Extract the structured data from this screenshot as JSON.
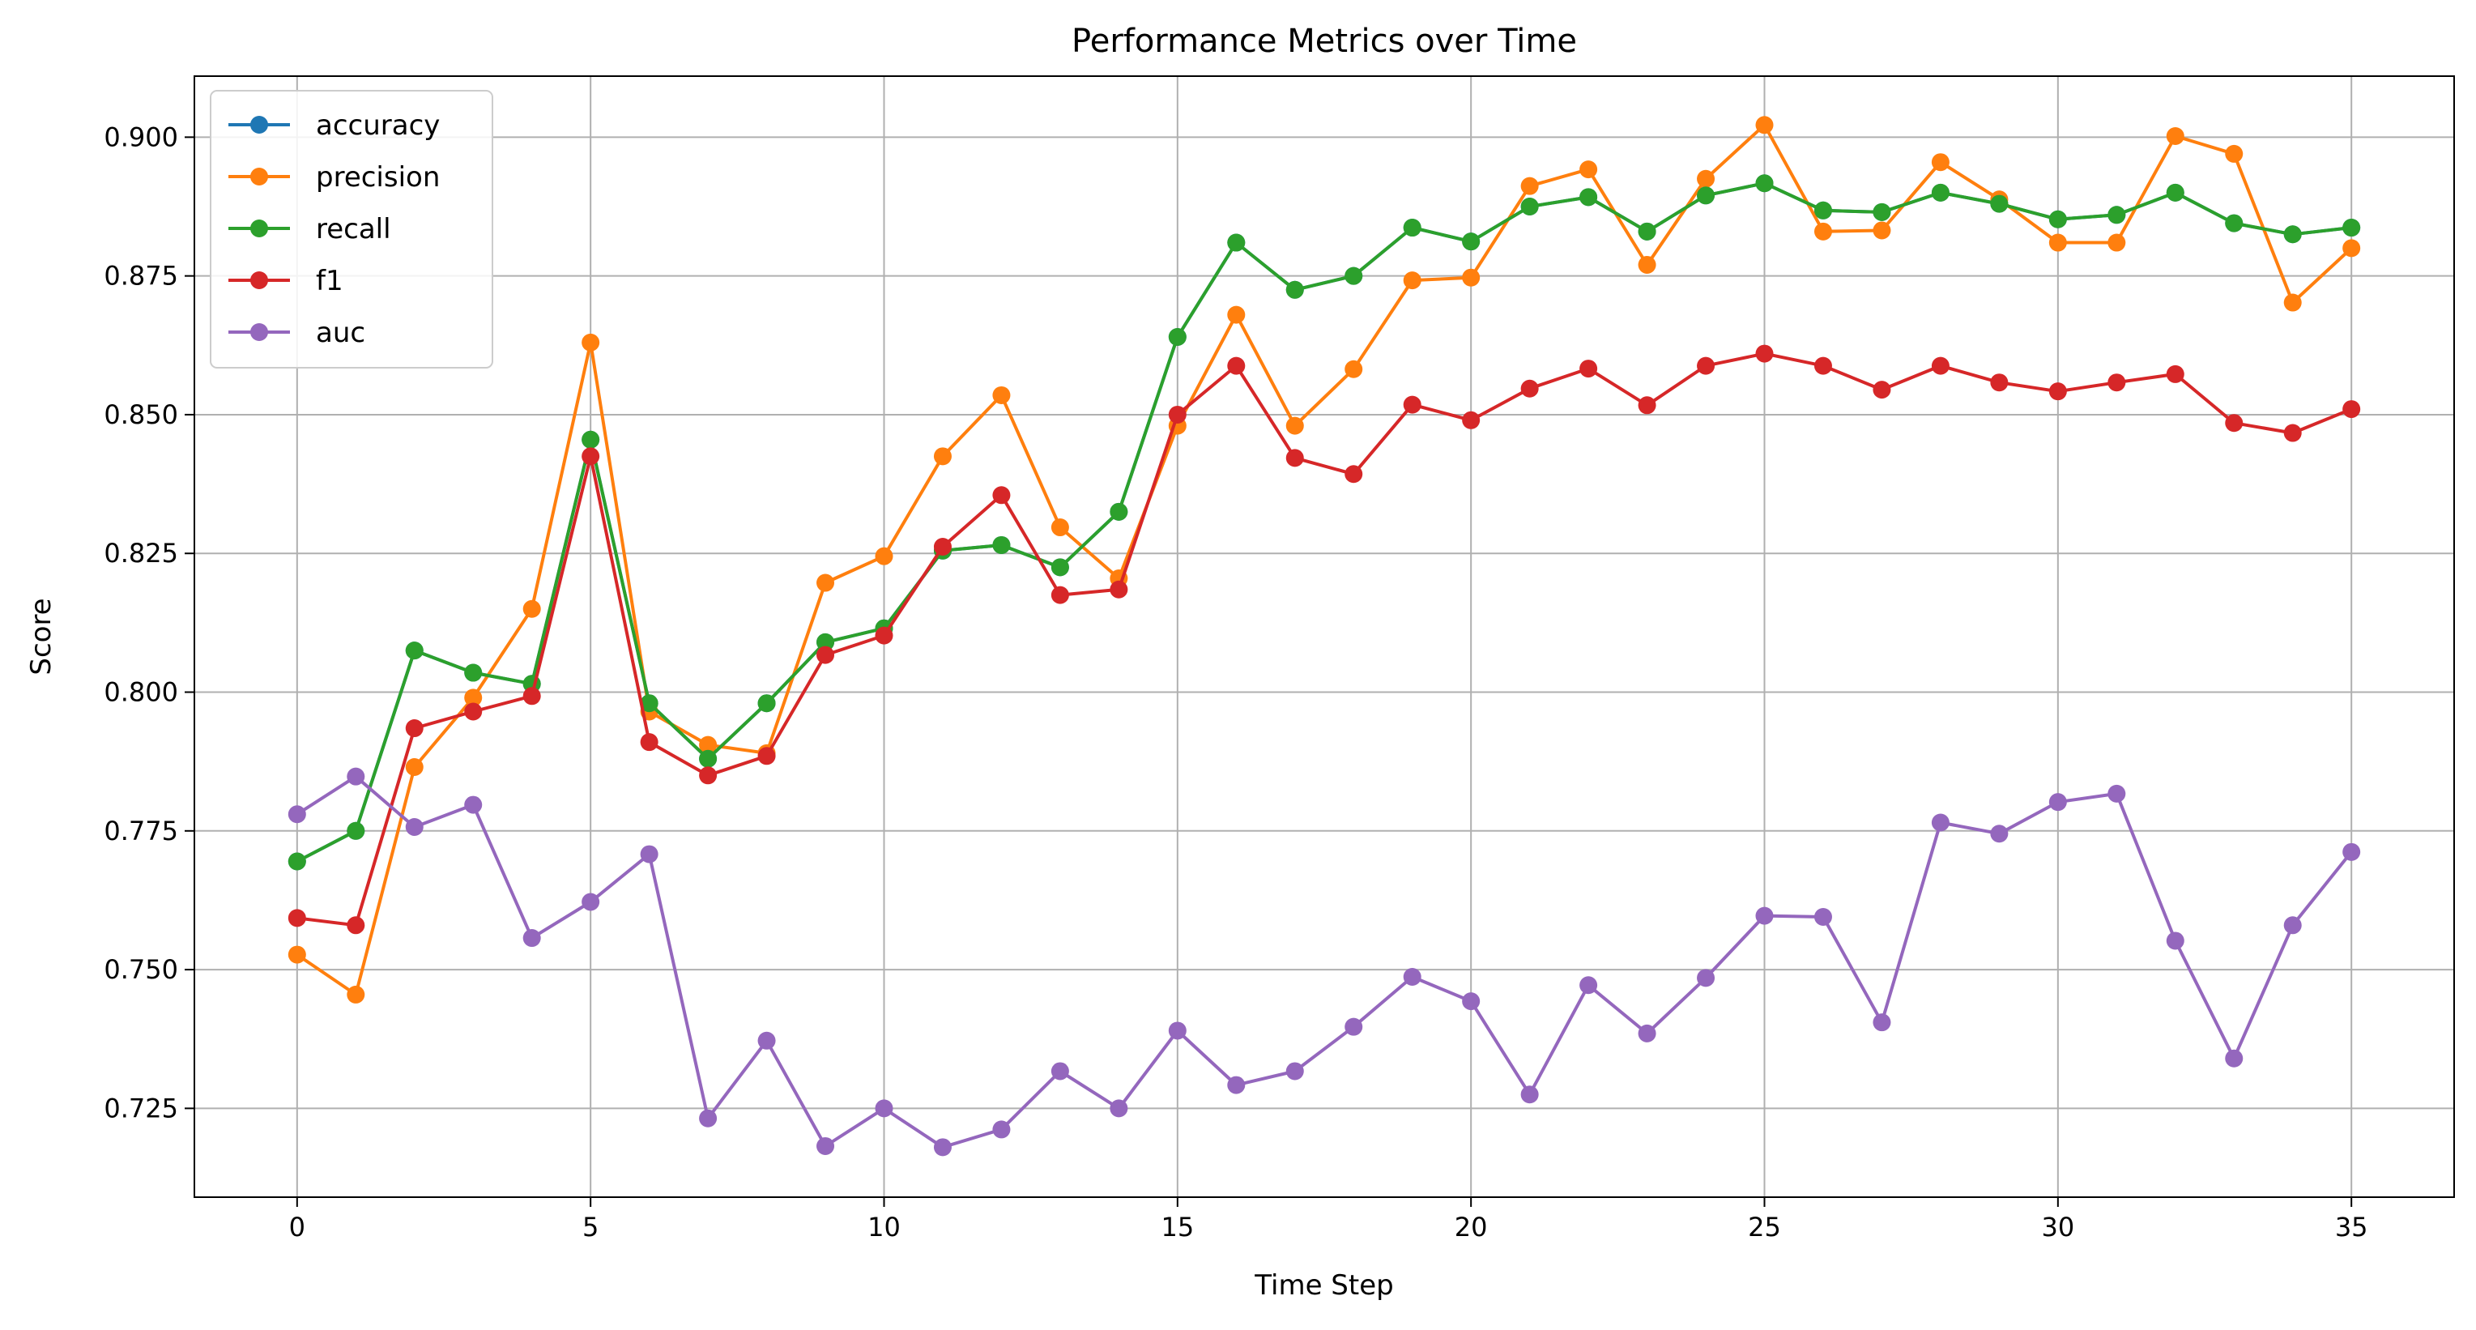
{
  "chart_data": {
    "type": "line",
    "title": "Performance Metrics over Time",
    "xlabel": "Time Step",
    "ylabel": "Score",
    "xlim": [
      -1.75,
      36.75
    ],
    "ylim": [
      0.709,
      0.911
    ],
    "xticks": [
      0,
      5,
      10,
      15,
      20,
      25,
      30,
      35
    ],
    "yticks": [
      0.725,
      0.75,
      0.775,
      0.8,
      0.825,
      0.85,
      0.875,
      0.9
    ],
    "ytick_labels": [
      "0.725",
      "0.750",
      "0.775",
      "0.800",
      "0.825",
      "0.850",
      "0.875",
      "0.900"
    ],
    "grid": true,
    "legend_position": "top-left",
    "x": [
      0,
      1,
      2,
      3,
      4,
      5,
      6,
      7,
      8,
      9,
      10,
      11,
      12,
      13,
      14,
      15,
      16,
      17,
      18,
      19,
      20,
      21,
      22,
      23,
      24,
      25,
      26,
      27,
      28,
      29,
      30,
      31,
      32,
      33,
      34,
      35
    ],
    "series": [
      {
        "name": "accuracy",
        "color": "#1f77b4",
        "values": [
          0.7695,
          0.775,
          0.8075,
          0.8035,
          0.8015,
          0.8455,
          0.798,
          0.788,
          0.798,
          0.809,
          0.8115,
          0.8255,
          0.8265,
          0.8225,
          0.8325,
          0.864,
          0.881,
          0.8725,
          0.875,
          0.8837,
          0.8812,
          0.8875,
          0.8892,
          0.883,
          0.8895,
          0.8917,
          0.8868,
          0.8865,
          0.89,
          0.888,
          0.8852,
          0.886,
          0.89,
          0.8845,
          0.8825,
          0.8837
        ]
      },
      {
        "name": "precision",
        "color": "#ff7f0e",
        "values": [
          0.7527,
          0.7455,
          0.7865,
          0.799,
          0.815,
          0.863,
          0.7965,
          0.7905,
          0.789,
          0.8197,
          0.8245,
          0.8425,
          0.8535,
          0.8297,
          0.8205,
          0.848,
          0.868,
          0.848,
          0.8582,
          0.8742,
          0.8747,
          0.8912,
          0.8942,
          0.877,
          0.8925,
          0.9022,
          0.883,
          0.8832,
          0.8955,
          0.8888,
          0.881,
          0.881,
          0.9002,
          0.897,
          0.8702,
          0.88
        ]
      },
      {
        "name": "recall",
        "color": "#2ca02c",
        "values": [
          0.7695,
          0.775,
          0.8075,
          0.8035,
          0.8015,
          0.8455,
          0.798,
          0.788,
          0.798,
          0.809,
          0.8115,
          0.8255,
          0.8265,
          0.8225,
          0.8325,
          0.864,
          0.881,
          0.8725,
          0.875,
          0.8837,
          0.8812,
          0.8875,
          0.8892,
          0.883,
          0.8895,
          0.8917,
          0.8868,
          0.8865,
          0.89,
          0.888,
          0.8852,
          0.886,
          0.89,
          0.8845,
          0.8825,
          0.8837
        ]
      },
      {
        "name": "f1",
        "color": "#d62728",
        "values": [
          0.7593,
          0.758,
          0.7935,
          0.7965,
          0.7993,
          0.8425,
          0.791,
          0.785,
          0.7885,
          0.8067,
          0.8102,
          0.8262,
          0.8355,
          0.8175,
          0.8185,
          0.85,
          0.8588,
          0.8422,
          0.8393,
          0.8518,
          0.849,
          0.8547,
          0.8583,
          0.8517,
          0.8588,
          0.861,
          0.8588,
          0.8545,
          0.8588,
          0.8558,
          0.8542,
          0.8558,
          0.8573,
          0.8485,
          0.8467,
          0.851
        ]
      },
      {
        "name": "auc",
        "color": "#9467bd",
        "values": [
          0.778,
          0.7848,
          0.7757,
          0.7797,
          0.7557,
          0.7622,
          0.7708,
          0.7232,
          0.7372,
          0.7182,
          0.725,
          0.718,
          0.7212,
          0.7317,
          0.725,
          0.739,
          0.7292,
          0.7317,
          0.7397,
          0.7487,
          0.7443,
          0.7275,
          0.7472,
          0.7385,
          0.7485,
          0.7597,
          0.7595,
          0.7405,
          0.7765,
          0.7745,
          0.7802,
          0.7817,
          0.7552,
          0.734,
          0.758,
          0.7712
        ]
      }
    ]
  }
}
